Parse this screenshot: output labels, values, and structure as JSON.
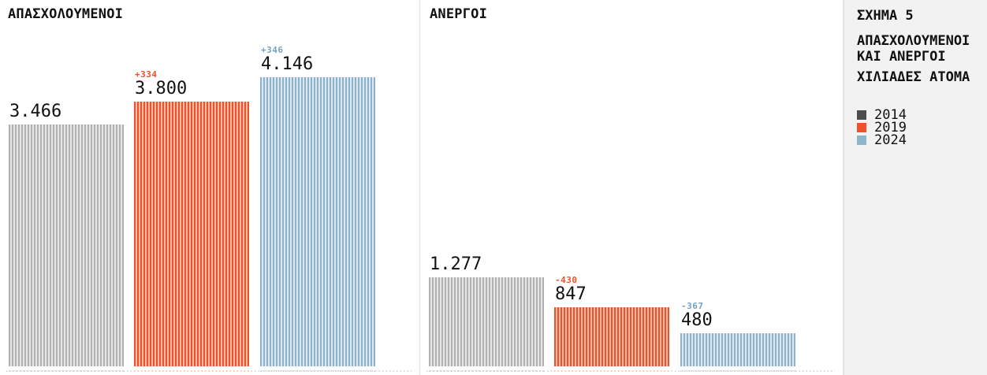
{
  "figure": {
    "label": "ΣΧΗΜΑ 5",
    "title": "ΑΠΑΣΧΟΛΟΥΜΕΝΟΙ\nΚΑΙ ΑΝΕΡΓΟΙ",
    "units": "ΧΙΛΙΑΔΕΣ ΑΤΟΜΑ"
  },
  "legend": {
    "items": [
      {
        "year": "2014",
        "color": "#4d4d4d"
      },
      {
        "year": "2019",
        "color": "#f0502a"
      },
      {
        "year": "2024",
        "color": "#8db6cc"
      }
    ]
  },
  "chart_data": {
    "type": "bar",
    "title": "ΣΧΗΜΑ 5 — ΑΠΑΣΧΟΛΟΥΜΕΝΟΙ ΚΑΙ ΑΝΕΡΓΟΙ",
    "ylabel": "ΧΙΛΙΑΔΕΣ ΑΤΟΜΑ",
    "categories": [
      "2014",
      "2019",
      "2024"
    ],
    "legend_position": "right",
    "grid": false,
    "ylim": [
      0,
      4146
    ],
    "groups": [
      {
        "id": "employed",
        "title": "ΑΠΑΣΧΟΛΟΥΜΕΝΟΙ",
        "values": [
          3466,
          3800,
          4146
        ],
        "labels": [
          "3.466",
          "3.800",
          "4.146"
        ],
        "deltas": [
          null,
          "+334",
          "+346"
        ]
      },
      {
        "id": "unemployed",
        "title": "ΑΝΕΡΓΟΙ",
        "values": [
          1277,
          847,
          480
        ],
        "labels": [
          "1.277",
          "847",
          "480"
        ],
        "deltas": [
          null,
          "-430",
          "-367"
        ]
      }
    ],
    "series_styles": [
      {
        "year": "2014",
        "stripe_main": "#b1b1b1",
        "stripe_light": "#e6e6e6",
        "delta_color": null,
        "underline": "#d9d9d9"
      },
      {
        "year": "2019",
        "stripe_main": "#f0512b",
        "stripe_light": "#f8bda7",
        "delta_color": "#f0502a",
        "underline": "#f6c4b1"
      },
      {
        "year": "2024",
        "stripe_main": "#8cb3c9",
        "stripe_light": "#dce9f0",
        "delta_color": "#73a3c1",
        "underline": "#c6dbe7"
      }
    ]
  }
}
